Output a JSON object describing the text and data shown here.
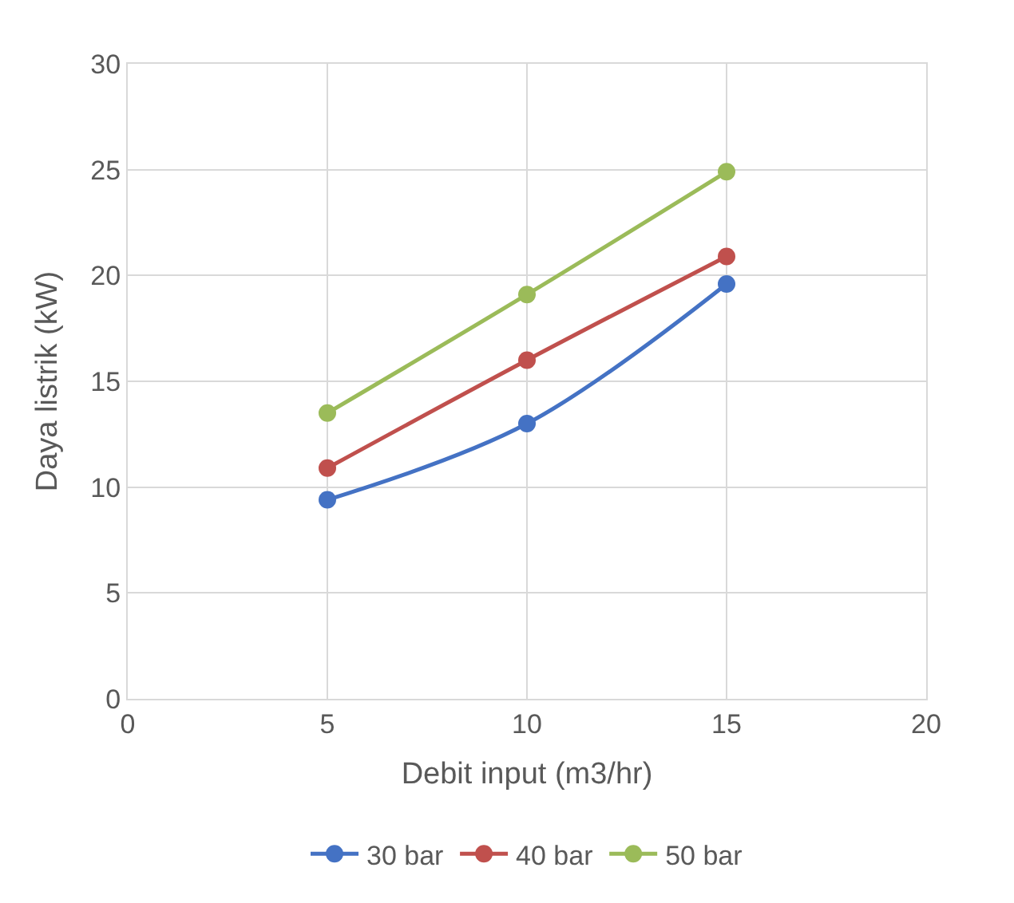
{
  "chart_data": {
    "type": "line",
    "xlabel": "Debit input (m3/hr)",
    "ylabel": "Daya listrik (kW)",
    "x": [
      5,
      10,
      15
    ],
    "series": [
      {
        "name": "30 bar",
        "color": "#4472c4",
        "values": [
          9.4,
          13.0,
          19.6
        ]
      },
      {
        "name": "40 bar",
        "color": "#c0504d",
        "values": [
          10.9,
          16.0,
          20.9
        ]
      },
      {
        "name": "50 bar",
        "color": "#9bbb59",
        "values": [
          13.5,
          19.1,
          24.9
        ]
      }
    ],
    "xlim": [
      0,
      20
    ],
    "xticks": [
      0,
      5,
      10,
      15,
      20
    ],
    "ylim": [
      0,
      30
    ],
    "yticks": [
      0,
      5,
      10,
      15,
      20,
      25,
      30
    ],
    "grid": true,
    "legend": "bottom",
    "marker": "circle",
    "line_style": "solid"
  }
}
